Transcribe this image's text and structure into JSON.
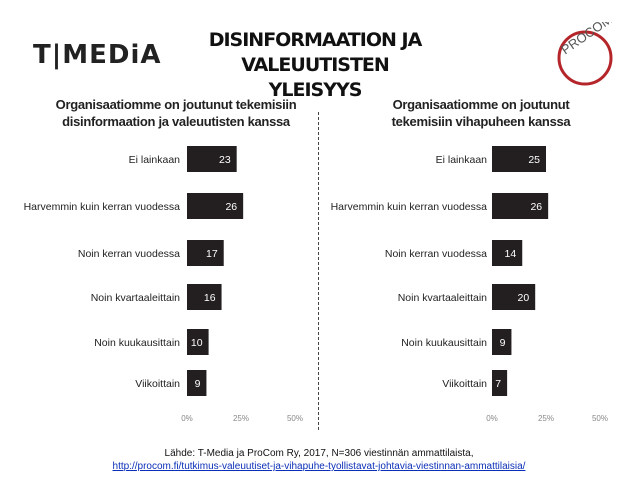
{
  "header": {
    "left_logo_text": "T|MEDiA",
    "title_line1": "DISINFORMAATION JA VALEUUTISTEN",
    "title_line2": "YLEISYYS",
    "right_logo_text": "PROCOM"
  },
  "chart_data": [
    {
      "type": "bar",
      "orientation": "horizontal",
      "title_line1": "Organisaatiomme on joutunut tekemisiin",
      "title_line2": "disinformaation ja valeuutisten kanssa",
      "categories": [
        "Ei lainkaan",
        "Harvemmin kuin kerran vuodessa",
        "Noin kerran vuodessa",
        "Noin kvartaaleittain",
        "Noin kuukausittain",
        "Viikoittain"
      ],
      "values": [
        23,
        26,
        17,
        16,
        10,
        9
      ],
      "x_ticks": [
        "0%",
        "25%",
        "50%"
      ],
      "xlim": [
        0,
        50
      ],
      "bar_color": "#231f20"
    },
    {
      "type": "bar",
      "orientation": "horizontal",
      "title_line1": "Organisaatiomme on joutunut",
      "title_line2": "tekemisiin vihapuheen kanssa",
      "categories": [
        "Ei lainkaan",
        "Harvemmin kuin kerran vuodessa",
        "Noin kerran vuodessa",
        "Noin kvartaaleittain",
        "Noin kuukausittain",
        "Viikoittain"
      ],
      "values": [
        25,
        26,
        14,
        20,
        9,
        7
      ],
      "x_ticks": [
        "0%",
        "25%",
        "50%"
      ],
      "xlim": [
        0,
        50
      ],
      "bar_color": "#231f20"
    }
  ],
  "source": {
    "line1": "Lähde: T-Media ja ProCom Ry, 2017, N=306 viestinnän ammattilaista,",
    "link": "http://procom.fi/tutkimus-valeuutiset-ja-vihapuhe-tyollistavat-johtavia-viestinnan-ammattilaisia/"
  }
}
